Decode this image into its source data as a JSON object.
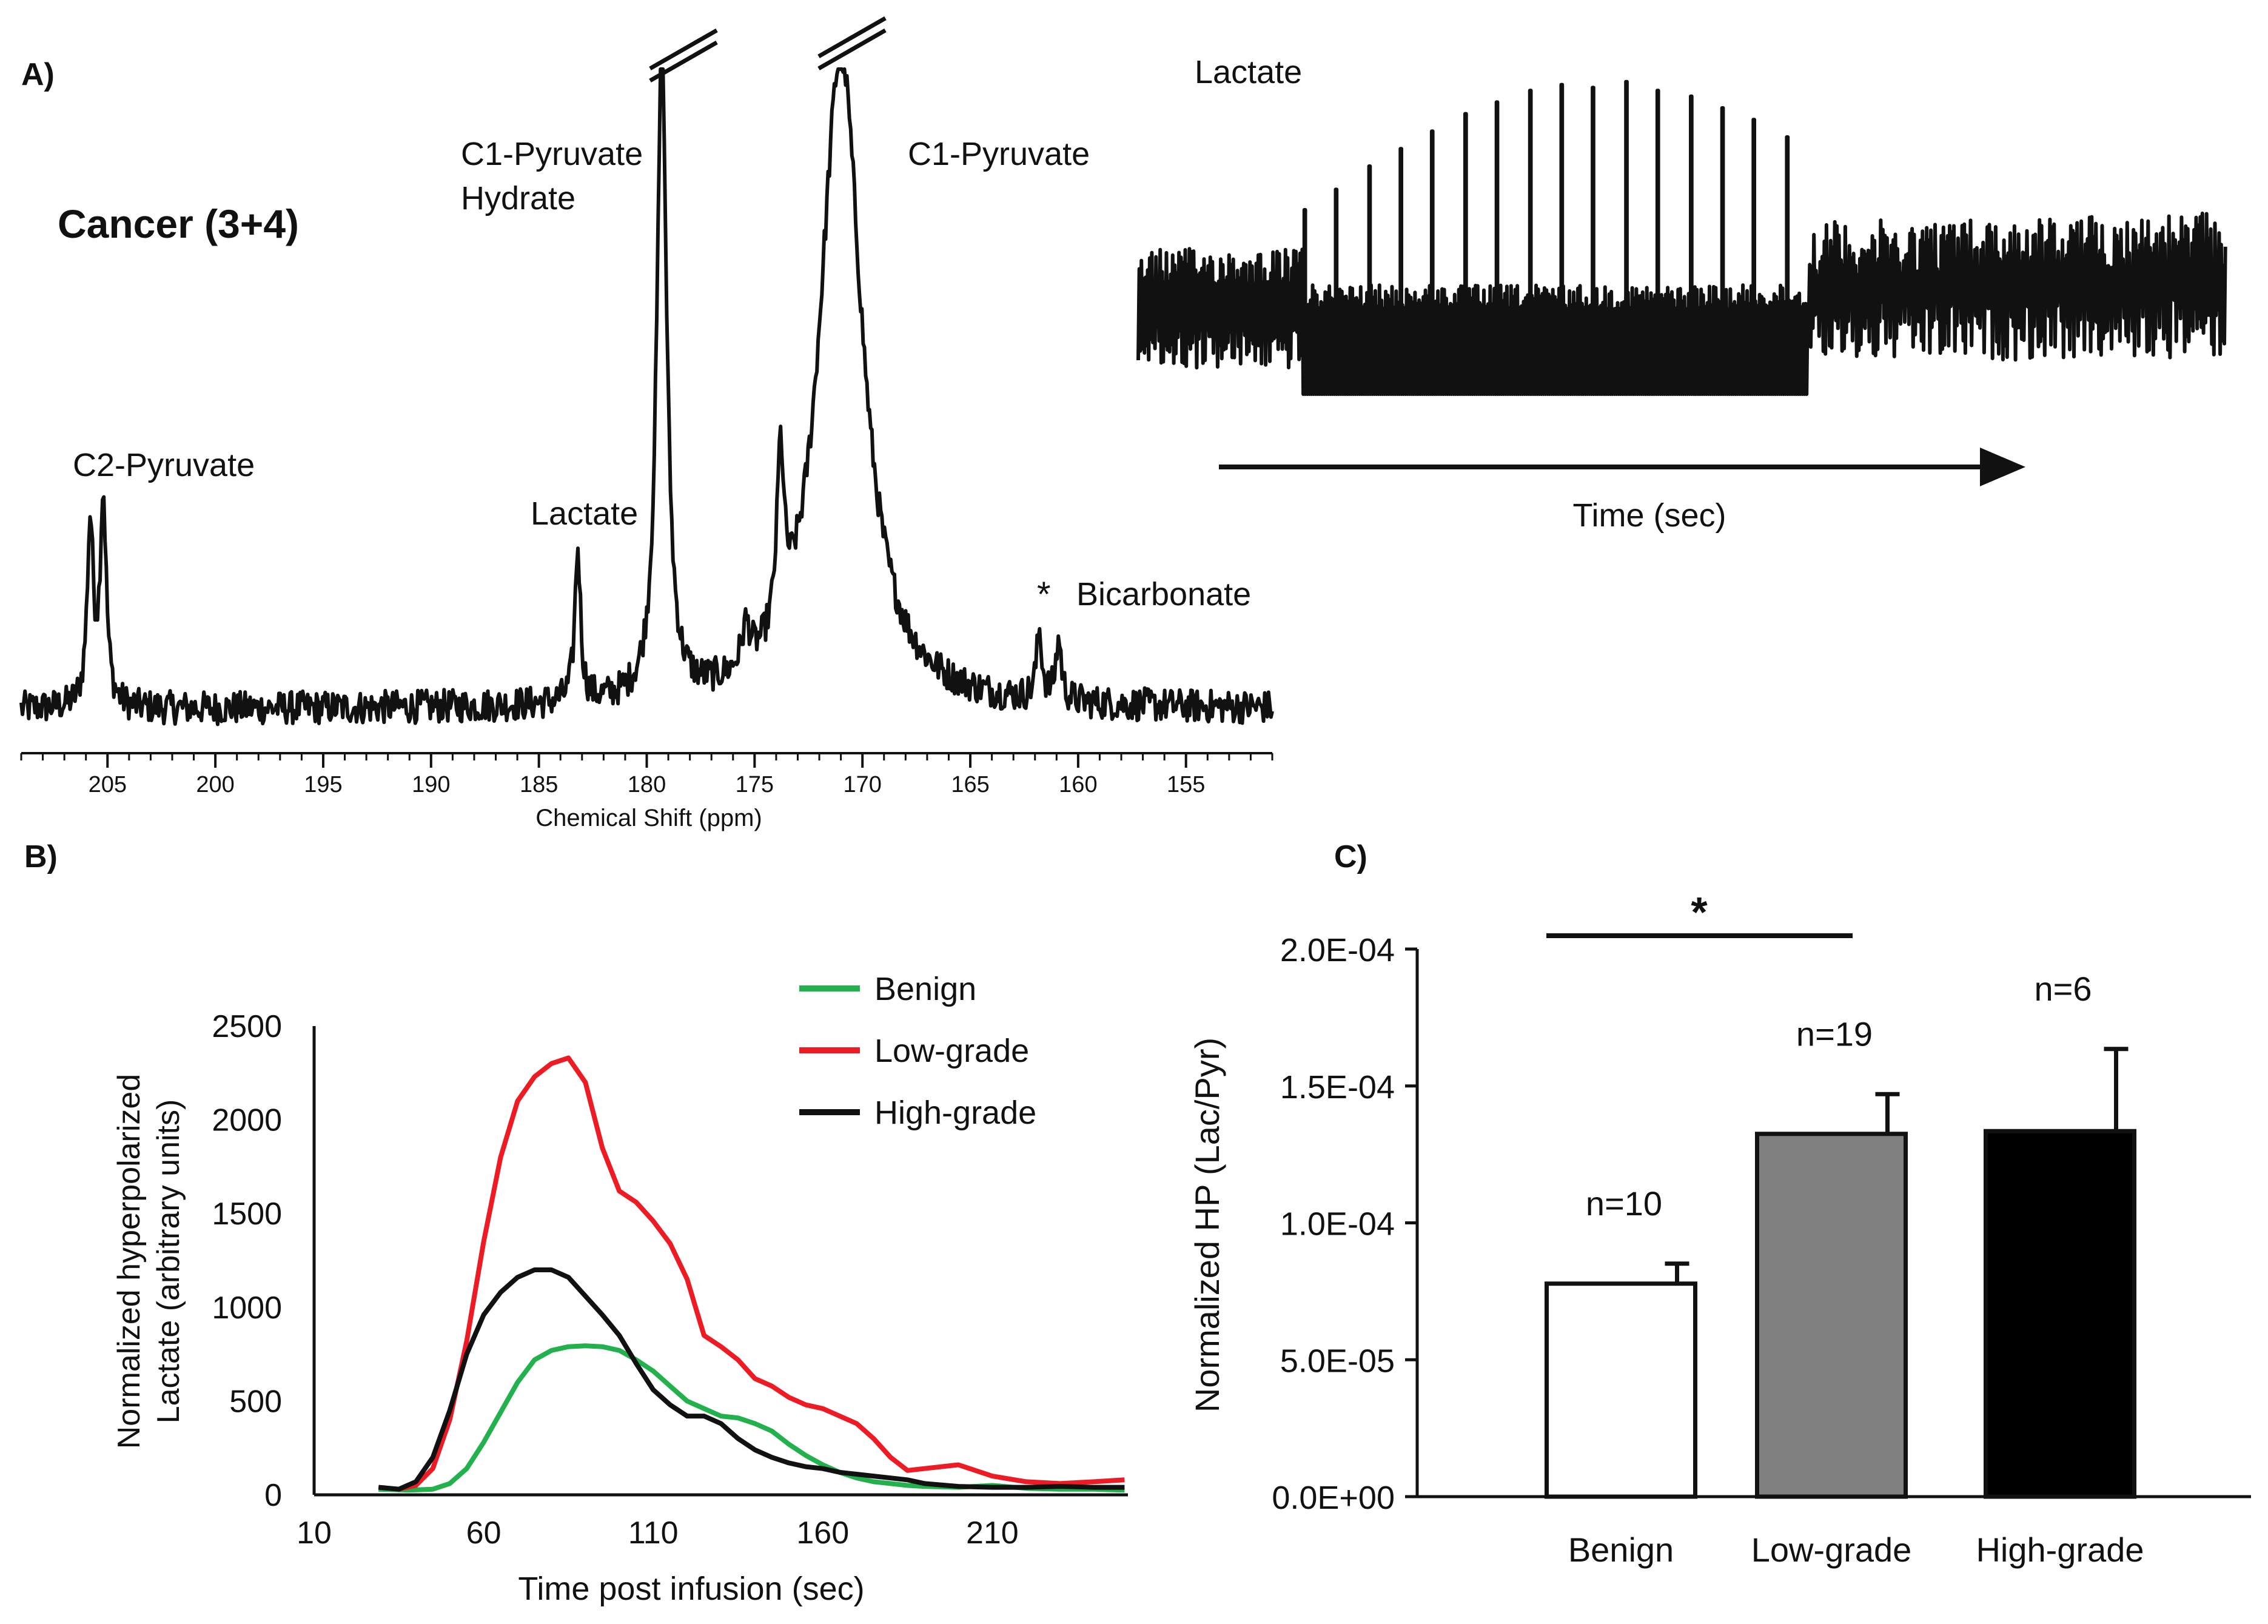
{
  "panel_labels": {
    "a": "A)",
    "b": "B)",
    "c": "C)"
  },
  "chart_data": [
    {
      "id": "A-spectrum",
      "type": "line",
      "title": "Cancer (3+4)",
      "xlabel": "Chemical Shift (ppm)",
      "ylabel": "",
      "xlim": [
        209,
        151
      ],
      "x_ticks": [
        205,
        200,
        195,
        190,
        185,
        180,
        175,
        170,
        165,
        160,
        155
      ],
      "ylim": [
        -0.06,
        1.0
      ],
      "peaks": [
        {
          "ppm": 205.8,
          "height": 0.27,
          "width": 0.22
        },
        {
          "ppm": 205.2,
          "height": 0.31,
          "width": 0.22
        },
        {
          "ppm": 183.2,
          "height": 0.23,
          "width": 0.2
        },
        {
          "ppm": 179.3,
          "height": 0.97,
          "width": 0.35
        },
        {
          "ppm": 175.4,
          "height": 0.06,
          "width": 0.3
        },
        {
          "ppm": 173.8,
          "height": 0.26,
          "width": 0.25
        },
        {
          "ppm": 171.0,
          "height": 0.98,
          "width": 1.5
        },
        {
          "ppm": 161.8,
          "height": 0.1,
          "width": 0.2
        },
        {
          "ppm": 160.9,
          "height": 0.09,
          "width": 0.2
        }
      ],
      "annotations": [
        "C2-Pyruvate",
        "Lactate",
        "C1-Pyruvate",
        "Hydrate",
        "C1-Pyruvate",
        "*",
        "Bicarbonate"
      ]
    },
    {
      "id": "A-dynamic",
      "type": "line",
      "title": "Lactate",
      "xlabel": "Time (sec)",
      "ylabel": "",
      "n_transients": 40,
      "burst_range": [
        6,
        21
      ],
      "burst_peak_heights": [
        0.55,
        0.62,
        0.7,
        0.76,
        0.82,
        0.88,
        0.92,
        0.96,
        0.98,
        0.97,
        0.99,
        0.96,
        0.94,
        0.9,
        0.86,
        0.8
      ]
    },
    {
      "id": "B-time-curves",
      "type": "line",
      "xlabel": "Time post infusion (sec)",
      "ylabel": "Normalized hyperpolarized\nLactate (arbitrary units)",
      "xlim": [
        10,
        250
      ],
      "ylim": [
        0,
        2500
      ],
      "x_ticks": [
        10,
        60,
        110,
        160,
        210
      ],
      "y_ticks": [
        0,
        500,
        1000,
        1500,
        2000,
        2500
      ],
      "series": [
        {
          "name": "Benign",
          "color": "#22b14c",
          "x": [
            29,
            38,
            45,
            50,
            55,
            60,
            65,
            70,
            75,
            80,
            85,
            90,
            95,
            100,
            105,
            110,
            115,
            120,
            125,
            130,
            135,
            140,
            145,
            150,
            155,
            160,
            165,
            170,
            175,
            180,
            185,
            190,
            200,
            210,
            220,
            230,
            240,
            249
          ],
          "y": [
            30,
            25,
            30,
            60,
            140,
            280,
            440,
            600,
            720,
            770,
            790,
            795,
            790,
            770,
            720,
            660,
            580,
            500,
            460,
            420,
            410,
            380,
            340,
            270,
            210,
            160,
            120,
            90,
            70,
            60,
            50,
            45,
            40,
            50,
            35,
            30,
            30,
            25
          ]
        },
        {
          "name": "Low-grade",
          "color": "#ed1c24",
          "x": [
            29,
            35,
            40,
            45,
            50,
            55,
            60,
            65,
            70,
            75,
            80,
            85,
            90,
            95,
            100,
            105,
            110,
            115,
            120,
            125,
            130,
            135,
            140,
            145,
            150,
            155,
            160,
            165,
            170,
            175,
            180,
            185,
            190,
            200,
            210,
            220,
            230,
            240,
            249
          ],
          "y": [
            40,
            30,
            50,
            140,
            400,
            820,
            1350,
            1800,
            2100,
            2230,
            2300,
            2330,
            2200,
            1850,
            1620,
            1560,
            1460,
            1340,
            1150,
            850,
            790,
            720,
            620,
            580,
            520,
            480,
            460,
            420,
            380,
            300,
            200,
            130,
            140,
            160,
            100,
            70,
            60,
            70,
            80
          ]
        },
        {
          "name": "High-grade",
          "color": "#111111",
          "x": [
            29,
            35,
            40,
            45,
            50,
            55,
            60,
            65,
            70,
            75,
            80,
            85,
            90,
            95,
            100,
            105,
            110,
            115,
            120,
            125,
            130,
            135,
            140,
            145,
            150,
            155,
            160,
            165,
            170,
            175,
            180,
            185,
            190,
            200,
            210,
            220,
            230,
            240,
            249
          ],
          "y": [
            40,
            30,
            70,
            200,
            450,
            750,
            960,
            1080,
            1160,
            1200,
            1200,
            1160,
            1060,
            960,
            850,
            700,
            560,
            480,
            420,
            420,
            380,
            300,
            240,
            200,
            170,
            150,
            140,
            120,
            110,
            100,
            90,
            80,
            60,
            45,
            40,
            40,
            45,
            40,
            40
          ]
        }
      ],
      "legend": "top-right"
    },
    {
      "id": "C-bars",
      "type": "bar",
      "xlabel": "",
      "ylabel": "Normalized HP (Lac/Pyr)",
      "ylim": [
        0,
        0.0002
      ],
      "y_ticks": [
        "0.0E+00",
        "5.0E-05",
        "1.0E-04",
        "1.5E-04",
        "2.0E-04"
      ],
      "categories": [
        "Benign",
        "Low-grade",
        "High-grade"
      ],
      "values": [
        7.78e-05,
        0.0001325,
        0.0001335
      ],
      "errors": [
        7.3e-06,
        1.45e-05,
        3e-05
      ],
      "colors": [
        "#ffffff",
        "#808080",
        "#000000"
      ],
      "n_labels": [
        "n=10",
        "n=19",
        "n=6"
      ],
      "significance": {
        "label": "*",
        "between": [
          "Benign",
          "Low-grade"
        ]
      }
    }
  ]
}
